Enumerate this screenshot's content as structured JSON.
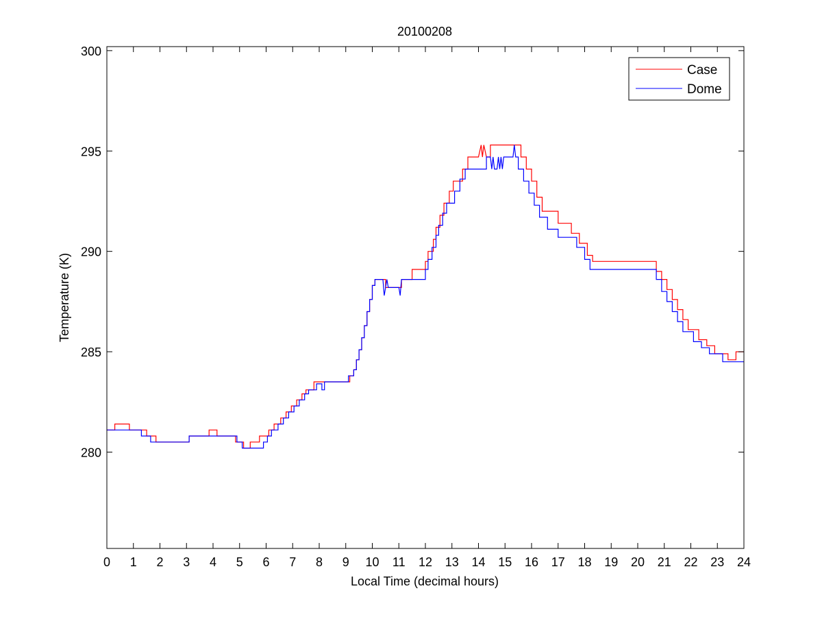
{
  "chart_data": {
    "type": "line",
    "title": "20100208",
    "xlabel": "Local Time (decimal hours)",
    "ylabel": "Temperature (K)",
    "xlim": [
      0,
      24
    ],
    "ylim": [
      275.2,
      300.2
    ],
    "xticks": [
      "0",
      "1",
      "2",
      "3",
      "4",
      "5",
      "6",
      "7",
      "8",
      "9",
      "10",
      "11",
      "12",
      "13",
      "14",
      "15",
      "16",
      "17",
      "18",
      "19",
      "20",
      "21",
      "22",
      "23",
      "24"
    ],
    "yticks": [
      "280",
      "285",
      "290",
      "295",
      "300"
    ],
    "grid": false,
    "legend_position": "top-right",
    "series": [
      {
        "name": "Case",
        "color": "#ff0000",
        "points": [
          [
            0,
            281.1
          ],
          [
            0.3,
            281.1
          ],
          [
            0.3,
            281.4
          ],
          [
            0.85,
            281.4
          ],
          [
            0.85,
            281.1
          ],
          [
            1.5,
            281.1
          ],
          [
            1.5,
            280.8
          ],
          [
            1.85,
            280.8
          ],
          [
            1.85,
            280.5
          ],
          [
            3.1,
            280.5
          ],
          [
            3.1,
            280.8
          ],
          [
            3.85,
            280.8
          ],
          [
            3.85,
            281.1
          ],
          [
            4.15,
            281.1
          ],
          [
            4.15,
            280.8
          ],
          [
            4.85,
            280.8
          ],
          [
            4.85,
            280.5
          ],
          [
            5.15,
            280.5
          ],
          [
            5.15,
            280.2
          ],
          [
            5.4,
            280.2
          ],
          [
            5.4,
            280.5
          ],
          [
            5.75,
            280.5
          ],
          [
            5.75,
            280.8
          ],
          [
            6.1,
            280.8
          ],
          [
            6.1,
            281.1
          ],
          [
            6.3,
            281.1
          ],
          [
            6.3,
            281.4
          ],
          [
            6.55,
            281.4
          ],
          [
            6.55,
            281.7
          ],
          [
            6.75,
            281.7
          ],
          [
            6.75,
            282.0
          ],
          [
            6.95,
            282.0
          ],
          [
            6.95,
            282.3
          ],
          [
            7.15,
            282.3
          ],
          [
            7.15,
            282.6
          ],
          [
            7.35,
            282.6
          ],
          [
            7.35,
            282.9
          ],
          [
            7.5,
            282.9
          ],
          [
            7.5,
            283.1
          ],
          [
            7.8,
            283.1
          ],
          [
            7.8,
            283.5
          ],
          [
            9.15,
            283.5
          ],
          [
            9.15,
            283.8
          ],
          [
            9.3,
            283.8
          ],
          [
            9.3,
            284.1
          ],
          [
            9.4,
            284.1
          ],
          [
            9.4,
            284.6
          ],
          [
            9.5,
            284.6
          ],
          [
            9.5,
            285.1
          ],
          [
            9.6,
            285.1
          ],
          [
            9.6,
            285.7
          ],
          [
            9.7,
            285.7
          ],
          [
            9.7,
            286.3
          ],
          [
            9.8,
            286.3
          ],
          [
            9.8,
            287.0
          ],
          [
            9.9,
            287.0
          ],
          [
            9.9,
            287.6
          ],
          [
            10.0,
            287.6
          ],
          [
            10.0,
            288.3
          ],
          [
            10.1,
            288.3
          ],
          [
            10.1,
            288.6
          ],
          [
            10.5,
            288.6
          ],
          [
            10.5,
            288.2
          ],
          [
            11.1,
            288.2
          ],
          [
            11.1,
            288.6
          ],
          [
            11.5,
            288.6
          ],
          [
            11.5,
            289.1
          ],
          [
            12.0,
            289.1
          ],
          [
            12.0,
            289.5
          ],
          [
            12.1,
            289.5
          ],
          [
            12.1,
            290.0
          ],
          [
            12.3,
            290.0
          ],
          [
            12.3,
            290.6
          ],
          [
            12.4,
            290.6
          ],
          [
            12.4,
            291.2
          ],
          [
            12.55,
            291.2
          ],
          [
            12.55,
            291.8
          ],
          [
            12.7,
            291.8
          ],
          [
            12.7,
            292.4
          ],
          [
            12.9,
            292.4
          ],
          [
            12.9,
            293.0
          ],
          [
            13.05,
            293.0
          ],
          [
            13.05,
            293.5
          ],
          [
            13.4,
            293.5
          ],
          [
            13.4,
            294.1
          ],
          [
            13.6,
            294.1
          ],
          [
            13.6,
            294.7
          ],
          [
            14.0,
            294.7
          ],
          [
            14.1,
            295.3
          ],
          [
            14.15,
            294.7
          ],
          [
            14.2,
            295.3
          ],
          [
            14.3,
            294.7
          ],
          [
            14.45,
            294.7
          ],
          [
            14.45,
            295.3
          ],
          [
            15.6,
            295.3
          ],
          [
            15.6,
            294.7
          ],
          [
            15.8,
            294.7
          ],
          [
            15.8,
            294.1
          ],
          [
            16.0,
            294.1
          ],
          [
            16.0,
            293.5
          ],
          [
            16.2,
            293.5
          ],
          [
            16.2,
            292.7
          ],
          [
            16.4,
            292.7
          ],
          [
            16.4,
            292.0
          ],
          [
            17.0,
            292.0
          ],
          [
            17.0,
            291.4
          ],
          [
            17.5,
            291.4
          ],
          [
            17.5,
            290.9
          ],
          [
            17.8,
            290.9
          ],
          [
            17.8,
            290.4
          ],
          [
            18.1,
            290.4
          ],
          [
            18.1,
            289.8
          ],
          [
            18.3,
            289.8
          ],
          [
            18.3,
            289.5
          ],
          [
            20.7,
            289.5
          ],
          [
            20.7,
            289.0
          ],
          [
            20.9,
            289.0
          ],
          [
            20.9,
            288.6
          ],
          [
            21.1,
            288.6
          ],
          [
            21.1,
            288.1
          ],
          [
            21.3,
            288.1
          ],
          [
            21.3,
            287.6
          ],
          [
            21.5,
            287.6
          ],
          [
            21.5,
            287.1
          ],
          [
            21.7,
            287.1
          ],
          [
            21.7,
            286.6
          ],
          [
            21.9,
            286.6
          ],
          [
            21.9,
            286.1
          ],
          [
            22.3,
            286.1
          ],
          [
            22.3,
            285.6
          ],
          [
            22.6,
            285.6
          ],
          [
            22.6,
            285.3
          ],
          [
            22.9,
            285.3
          ],
          [
            22.9,
            284.9
          ],
          [
            23.4,
            284.9
          ],
          [
            23.4,
            284.6
          ],
          [
            23.7,
            284.6
          ],
          [
            23.7,
            285.0
          ],
          [
            24.0,
            285.0
          ]
        ]
      },
      {
        "name": "Dome",
        "color": "#0000ff",
        "points": [
          [
            0,
            281.1
          ],
          [
            1.3,
            281.1
          ],
          [
            1.3,
            280.8
          ],
          [
            1.65,
            280.8
          ],
          [
            1.65,
            280.5
          ],
          [
            3.1,
            280.5
          ],
          [
            3.1,
            280.8
          ],
          [
            4.9,
            280.8
          ],
          [
            4.9,
            280.5
          ],
          [
            5.1,
            280.5
          ],
          [
            5.1,
            280.2
          ],
          [
            5.9,
            280.2
          ],
          [
            5.9,
            280.5
          ],
          [
            6.05,
            280.5
          ],
          [
            6.05,
            280.8
          ],
          [
            6.2,
            280.8
          ],
          [
            6.2,
            281.1
          ],
          [
            6.45,
            281.1
          ],
          [
            6.45,
            281.4
          ],
          [
            6.65,
            281.4
          ],
          [
            6.65,
            281.7
          ],
          [
            6.85,
            281.7
          ],
          [
            6.85,
            282.0
          ],
          [
            7.05,
            282.0
          ],
          [
            7.05,
            282.3
          ],
          [
            7.25,
            282.3
          ],
          [
            7.25,
            282.6
          ],
          [
            7.45,
            282.6
          ],
          [
            7.45,
            282.9
          ],
          [
            7.6,
            282.9
          ],
          [
            7.6,
            283.1
          ],
          [
            7.9,
            283.1
          ],
          [
            7.9,
            283.4
          ],
          [
            8.1,
            283.4
          ],
          [
            8.1,
            283.1
          ],
          [
            8.2,
            283.1
          ],
          [
            8.2,
            283.5
          ],
          [
            9.1,
            283.5
          ],
          [
            9.1,
            283.8
          ],
          [
            9.3,
            283.8
          ],
          [
            9.3,
            284.1
          ],
          [
            9.4,
            284.1
          ],
          [
            9.4,
            284.6
          ],
          [
            9.5,
            284.6
          ],
          [
            9.5,
            285.1
          ],
          [
            9.6,
            285.1
          ],
          [
            9.6,
            285.7
          ],
          [
            9.7,
            285.7
          ],
          [
            9.7,
            286.3
          ],
          [
            9.8,
            286.3
          ],
          [
            9.8,
            287.0
          ],
          [
            9.9,
            287.0
          ],
          [
            9.9,
            287.6
          ],
          [
            10.0,
            287.6
          ],
          [
            10.0,
            288.3
          ],
          [
            10.1,
            288.3
          ],
          [
            10.1,
            288.6
          ],
          [
            10.4,
            288.6
          ],
          [
            10.45,
            287.8
          ],
          [
            10.5,
            288.2
          ],
          [
            10.55,
            288.6
          ],
          [
            10.6,
            288.2
          ],
          [
            11.0,
            288.2
          ],
          [
            11.05,
            287.8
          ],
          [
            11.1,
            288.6
          ],
          [
            12.0,
            288.6
          ],
          [
            12.0,
            289.1
          ],
          [
            12.1,
            289.1
          ],
          [
            12.1,
            289.6
          ],
          [
            12.25,
            289.6
          ],
          [
            12.25,
            290.2
          ],
          [
            12.4,
            290.2
          ],
          [
            12.4,
            290.8
          ],
          [
            12.5,
            290.8
          ],
          [
            12.5,
            291.3
          ],
          [
            12.65,
            291.3
          ],
          [
            12.65,
            291.9
          ],
          [
            12.8,
            291.9
          ],
          [
            12.8,
            292.4
          ],
          [
            13.1,
            292.4
          ],
          [
            13.1,
            293.0
          ],
          [
            13.3,
            293.0
          ],
          [
            13.3,
            293.6
          ],
          [
            13.5,
            293.6
          ],
          [
            13.5,
            294.1
          ],
          [
            14.3,
            294.1
          ],
          [
            14.3,
            294.7
          ],
          [
            14.45,
            294.7
          ],
          [
            14.5,
            294.1
          ],
          [
            14.55,
            294.7
          ],
          [
            14.6,
            294.1
          ],
          [
            14.7,
            294.1
          ],
          [
            14.75,
            294.7
          ],
          [
            14.8,
            294.1
          ],
          [
            14.85,
            294.7
          ],
          [
            14.9,
            294.1
          ],
          [
            14.95,
            294.7
          ],
          [
            15.3,
            294.7
          ],
          [
            15.35,
            295.3
          ],
          [
            15.4,
            294.7
          ],
          [
            15.5,
            294.7
          ],
          [
            15.5,
            294.1
          ],
          [
            15.7,
            294.1
          ],
          [
            15.7,
            293.5
          ],
          [
            15.9,
            293.5
          ],
          [
            15.9,
            292.9
          ],
          [
            16.1,
            292.9
          ],
          [
            16.1,
            292.3
          ],
          [
            16.3,
            292.3
          ],
          [
            16.3,
            291.7
          ],
          [
            16.6,
            291.7
          ],
          [
            16.6,
            291.1
          ],
          [
            17.0,
            291.1
          ],
          [
            17.0,
            290.7
          ],
          [
            17.7,
            290.7
          ],
          [
            17.7,
            290.2
          ],
          [
            18.0,
            290.2
          ],
          [
            18.0,
            289.6
          ],
          [
            18.2,
            289.6
          ],
          [
            18.2,
            289.1
          ],
          [
            20.7,
            289.1
          ],
          [
            20.7,
            288.6
          ],
          [
            20.9,
            288.6
          ],
          [
            20.9,
            288.0
          ],
          [
            21.1,
            288.0
          ],
          [
            21.1,
            287.5
          ],
          [
            21.3,
            287.5
          ],
          [
            21.3,
            287.0
          ],
          [
            21.5,
            287.0
          ],
          [
            21.5,
            286.5
          ],
          [
            21.7,
            286.5
          ],
          [
            21.7,
            286.0
          ],
          [
            22.1,
            286.0
          ],
          [
            22.1,
            285.5
          ],
          [
            22.4,
            285.5
          ],
          [
            22.4,
            285.2
          ],
          [
            22.7,
            285.2
          ],
          [
            22.7,
            284.9
          ],
          [
            23.2,
            284.9
          ],
          [
            23.2,
            284.5
          ],
          [
            24.0,
            284.5
          ]
        ]
      }
    ]
  }
}
